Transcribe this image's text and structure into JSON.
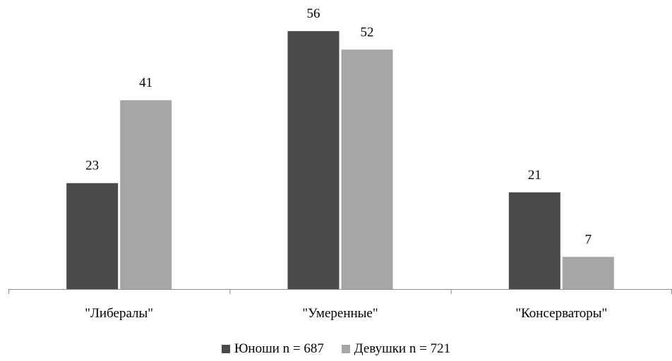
{
  "chart_data": {
    "type": "bar",
    "categories": [
      "\"Либералы\"",
      "\"Умеренные\"",
      "\"Консерваторы\""
    ],
    "series": [
      {
        "name": "Юноши  n = 687",
        "values": [
          23,
          56,
          21
        ],
        "color": "#4a4a4a"
      },
      {
        "name": "Девушки  n = 721",
        "values": [
          41,
          52,
          7
        ],
        "color": "#a6a6a6"
      }
    ],
    "ylim": [
      0,
      60
    ],
    "grid": false,
    "legend_position": "bottom"
  }
}
